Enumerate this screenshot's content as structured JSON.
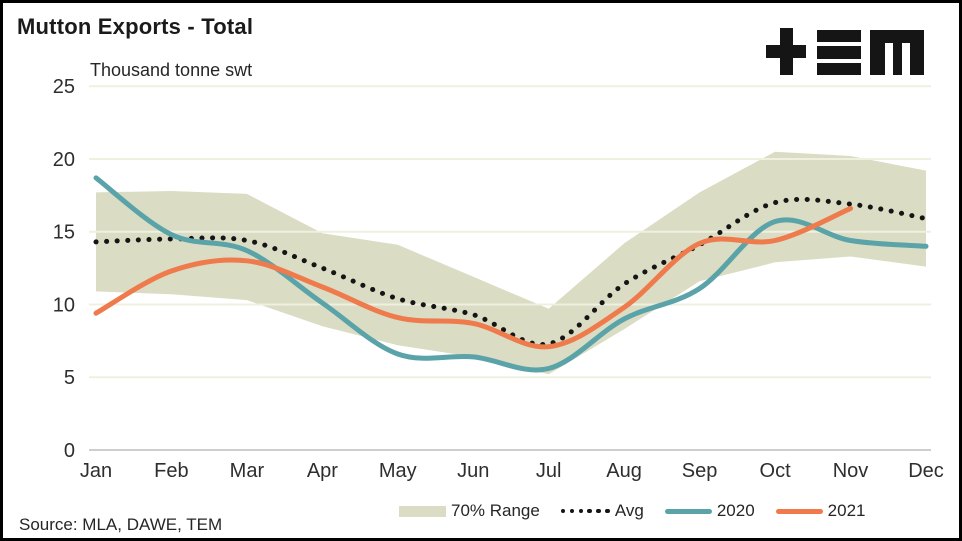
{
  "title": "Mutton Exports - Total",
  "subtitle": "Thousand tonne swt",
  "source": "Source: MLA, DAWE, TEM",
  "logo": {
    "name": "TEM logo",
    "glyphs": "+ = M"
  },
  "colors": {
    "band": "#dadcc4",
    "avg_dots": "#151515",
    "series_2020": "#5aa3a8",
    "series_2021": "#ef7a4c",
    "gridline": "#eff0e0",
    "zero_axis": "#bdbdbd",
    "tick_text": "#2e2e2e"
  },
  "legend": {
    "items": [
      {
        "label": "70% Range",
        "type": "band"
      },
      {
        "label": "Avg",
        "type": "dotted"
      },
      {
        "label": "2020",
        "type": "line"
      },
      {
        "label": "2021",
        "type": "line"
      }
    ]
  },
  "chart_data": {
    "type": "line",
    "title": "Mutton Exports - Total",
    "xlabel": "",
    "ylabel": "Thousand tonne swt",
    "ylim": [
      0,
      25
    ],
    "yticks": [
      0,
      5,
      10,
      15,
      20,
      25
    ],
    "grid": "horizontal",
    "legend_position": "bottom",
    "categories": [
      "Jan",
      "Feb",
      "Mar",
      "Apr",
      "May",
      "Jun",
      "Jul",
      "Aug",
      "Sep",
      "Oct",
      "Nov",
      "Dec"
    ],
    "series": [
      {
        "name": "70% Range",
        "type": "band",
        "top": [
          17.7,
          17.8,
          17.6,
          14.9,
          14.1,
          11.9,
          9.7,
          14.2,
          17.7,
          20.5,
          20.2,
          19.2
        ],
        "bottom": [
          10.9,
          10.7,
          10.3,
          8.5,
          7.2,
          6.4,
          5.2,
          8.3,
          11.6,
          12.9,
          13.3,
          12.6
        ],
        "color": "#dadcc4"
      },
      {
        "name": "Avg",
        "type": "dotted-line",
        "values": [
          14.3,
          14.5,
          14.4,
          12.5,
          10.4,
          9.3,
          7.3,
          11.4,
          14.1,
          17.0,
          16.9,
          15.9
        ],
        "color": "#151515"
      },
      {
        "name": "2020",
        "type": "line",
        "values": [
          18.7,
          14.8,
          13.7,
          10.1,
          6.6,
          6.4,
          5.6,
          9.0,
          11.1,
          15.7,
          14.4,
          14.0
        ],
        "color": "#5aa3a8"
      },
      {
        "name": "2021",
        "type": "line",
        "values": [
          9.4,
          12.3,
          13.0,
          11.2,
          9.1,
          8.7,
          7.1,
          9.8,
          14.2,
          14.4,
          16.6,
          null
        ],
        "color": "#ef7a4c"
      }
    ]
  }
}
